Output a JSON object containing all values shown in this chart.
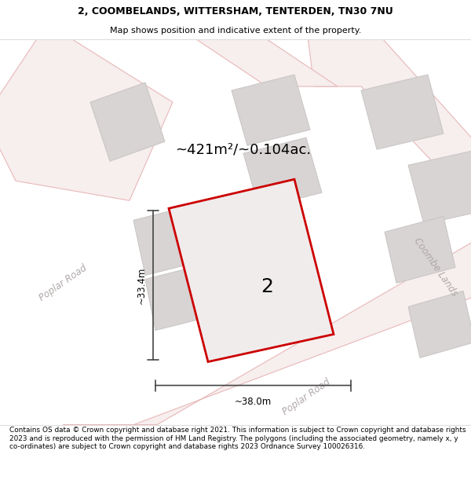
{
  "title_line1": "2, COOMBELANDS, WITTERSHAM, TENTERDEN, TN30 7NU",
  "title_line2": "Map shows position and indicative extent of the property.",
  "footer_text": "Contains OS data © Crown copyright and database right 2021. This information is subject to Crown copyright and database rights 2023 and is reproduced with the permission of HM Land Registry. The polygons (including the associated geometry, namely x, y co-ordinates) are subject to Crown copyright and database rights 2023 Ordnance Survey 100026316.",
  "map_bg": "#faf8f8",
  "road_fill": "#f7eeee",
  "road_edge": "#e8b8b8",
  "building_fill": "#d8d4d4",
  "building_edge": "#c8c4c4",
  "plot_fill": "#f0ecec",
  "plot_edge": "#cc0000",
  "dim_color": "#444444",
  "road_text_color": "#b0a8a8",
  "area_text": "~421m²/~0.104ac.",
  "dim_width": "~38.0m",
  "dim_height": "~33.4m",
  "plot_number": "2",
  "road_label_poplar1": "Poplar Road",
  "road_label_poplar2": "Poplar Road",
  "road_label_coombe": "Coombe Lands"
}
